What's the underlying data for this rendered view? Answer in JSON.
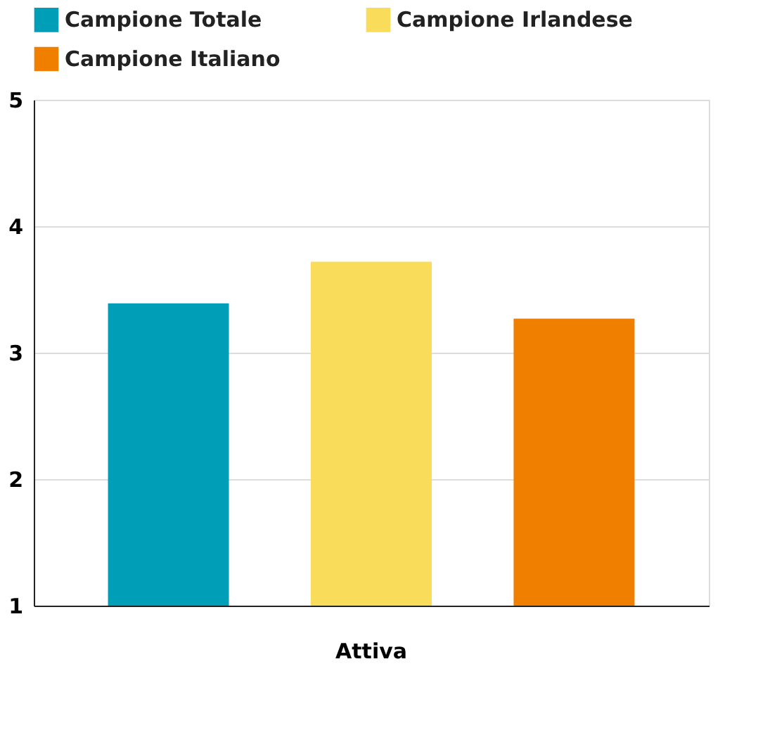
{
  "chart_data": {
    "type": "bar",
    "categories": [
      "Attiva"
    ],
    "series": [
      {
        "name": "Campione Totale",
        "color": "#009fb7",
        "values": [
          3.39
        ]
      },
      {
        "name": "Campione Irlandese",
        "color": "#f8dc5a",
        "values": [
          3.72
        ]
      },
      {
        "name": "Campione Italiano",
        "color": "#f07f00",
        "values": [
          3.27
        ]
      }
    ],
    "ylim": [
      1,
      5
    ],
    "yticks": [
      1,
      2,
      3,
      4,
      5
    ],
    "grid": "y",
    "legend": "top left"
  }
}
